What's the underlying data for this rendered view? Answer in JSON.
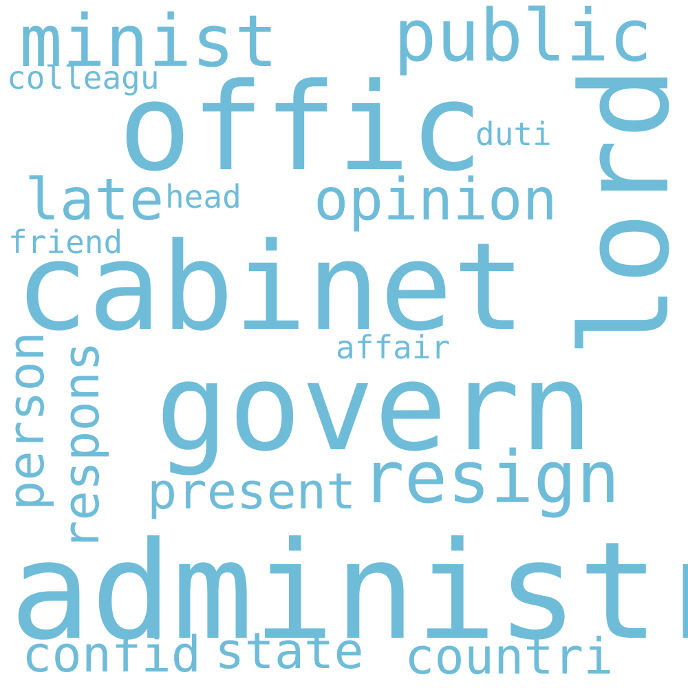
{
  "color": "#6fbcd9",
  "words": {
    "administr": "administr",
    "govern": "govern",
    "cabinet": "cabinet",
    "offic": "offic",
    "lord": "lord",
    "minist": "minist",
    "public": "public",
    "resign": "resign",
    "opinion": "opinion",
    "late": "late",
    "present": "present",
    "respons": "respons",
    "person": "person",
    "confid": "confid",
    "state": "state",
    "countri": "countri",
    "affair": "affair",
    "duti": "duti",
    "head": "head",
    "friend": "friend",
    "colleagu": "colleagu"
  }
}
